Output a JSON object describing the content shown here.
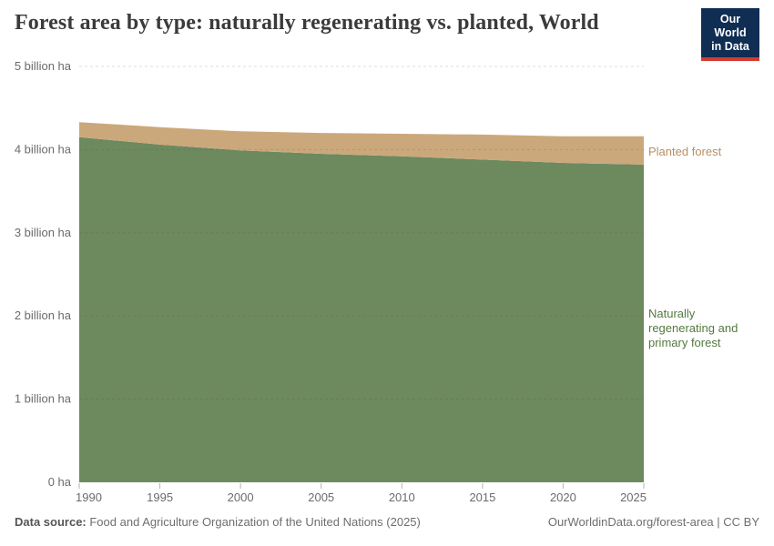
{
  "header": {
    "title": "Forest area by type: naturally regenerating vs. planted, World",
    "logo": {
      "line1": "Our World",
      "line2": "in Data"
    }
  },
  "chart_data": {
    "type": "area",
    "stacked": true,
    "title": "Forest area by type: naturally regenerating vs. planted, World",
    "unit": "billion ha",
    "x": [
      1990,
      1995,
      2000,
      2005,
      2010,
      2015,
      2020,
      2025
    ],
    "series": [
      {
        "name": "Naturally regenerating and primary forest",
        "color": "#6d895e",
        "label_color": "#54793f",
        "values": [
          4.15,
          4.06,
          3.99,
          3.95,
          3.92,
          3.88,
          3.84,
          3.82
        ]
      },
      {
        "name": "Planted forest",
        "color": "#cba87b",
        "label_color": "#b78f63",
        "values": [
          0.18,
          0.21,
          0.23,
          0.25,
          0.27,
          0.3,
          0.32,
          0.34
        ]
      }
    ],
    "xlim": [
      1990,
      2025
    ],
    "ylim": [
      0,
      5
    ],
    "xlabel": "",
    "ylabel": "",
    "grid": "horizontal-dashed",
    "legend_position": "labels-right-of-areas",
    "y_ticks": [
      {
        "value": 0,
        "label": "0 ha"
      },
      {
        "value": 1,
        "label": "1 billion ha"
      },
      {
        "value": 2,
        "label": "2 billion ha"
      },
      {
        "value": 3,
        "label": "3 billion ha"
      },
      {
        "value": 4,
        "label": "4 billion ha"
      },
      {
        "value": 5,
        "label": "5 billion ha"
      }
    ],
    "x_ticks": [
      {
        "value": 1990,
        "label": "1990"
      },
      {
        "value": 1995,
        "label": "1995"
      },
      {
        "value": 2000,
        "label": "2000"
      },
      {
        "value": 2005,
        "label": "2005"
      },
      {
        "value": 2010,
        "label": "2010"
      },
      {
        "value": 2015,
        "label": "2015"
      },
      {
        "value": 2020,
        "label": "2020"
      },
      {
        "value": 2025,
        "label": "2025"
      }
    ]
  },
  "footer": {
    "source_prefix": "Data source:",
    "source": " Food and Agriculture Organization of the United Nations (2025)",
    "credit": "OurWorldinData.org/forest-area | CC BY"
  }
}
